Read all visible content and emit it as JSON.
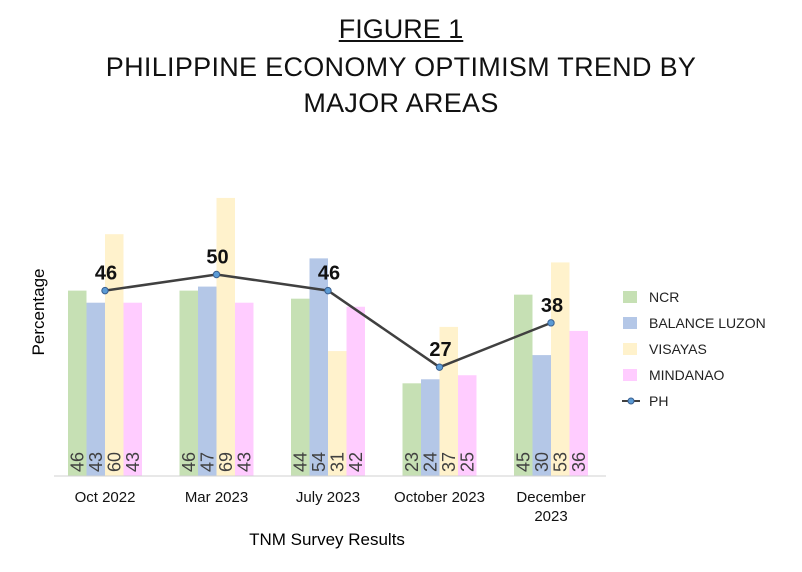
{
  "figure_label": "FIGURE 1",
  "title_lines": [
    "PHILIPPINE ECONOMY OPTIMISM TREND BY",
    "MAJOR AREAS"
  ],
  "chart_data": {
    "type": "bar",
    "title": "PHILIPPINE ECONOMY OPTIMISM TREND BY MAJOR AREAS",
    "xlabel": "TNM Survey Results",
    "ylabel": "Percentage",
    "ylim": [
      0,
      80
    ],
    "grid": false,
    "legend": "right",
    "categories": [
      "Oct 2022",
      "Mar 2023",
      "July 2023",
      "October 2023",
      "December 2023"
    ],
    "category_labels": [
      [
        "Oct 2022"
      ],
      [
        "Mar 2023"
      ],
      [
        "July 2023"
      ],
      [
        "October 2023"
      ],
      [
        "December",
        "2023"
      ]
    ],
    "series": [
      {
        "name": "NCR",
        "type": "bar",
        "color": "#c6e0b4",
        "values": [
          46,
          46,
          44,
          23,
          45
        ]
      },
      {
        "name": "BALANCE LUZON",
        "type": "bar",
        "color": "#b4c7e7",
        "values": [
          43,
          47,
          54,
          24,
          30
        ]
      },
      {
        "name": "VISAYAS",
        "type": "bar",
        "color": "#fff2cc",
        "values": [
          60,
          69,
          31,
          37,
          53
        ]
      },
      {
        "name": "MINDANAO",
        "type": "bar",
        "color": "#ffccff",
        "values": [
          43,
          43,
          42,
          25,
          36
        ]
      },
      {
        "name": "PH",
        "type": "line",
        "color": "#404040",
        "marker_color": "#5b9bd5",
        "values": [
          46,
          50,
          46,
          27,
          38
        ]
      }
    ]
  }
}
